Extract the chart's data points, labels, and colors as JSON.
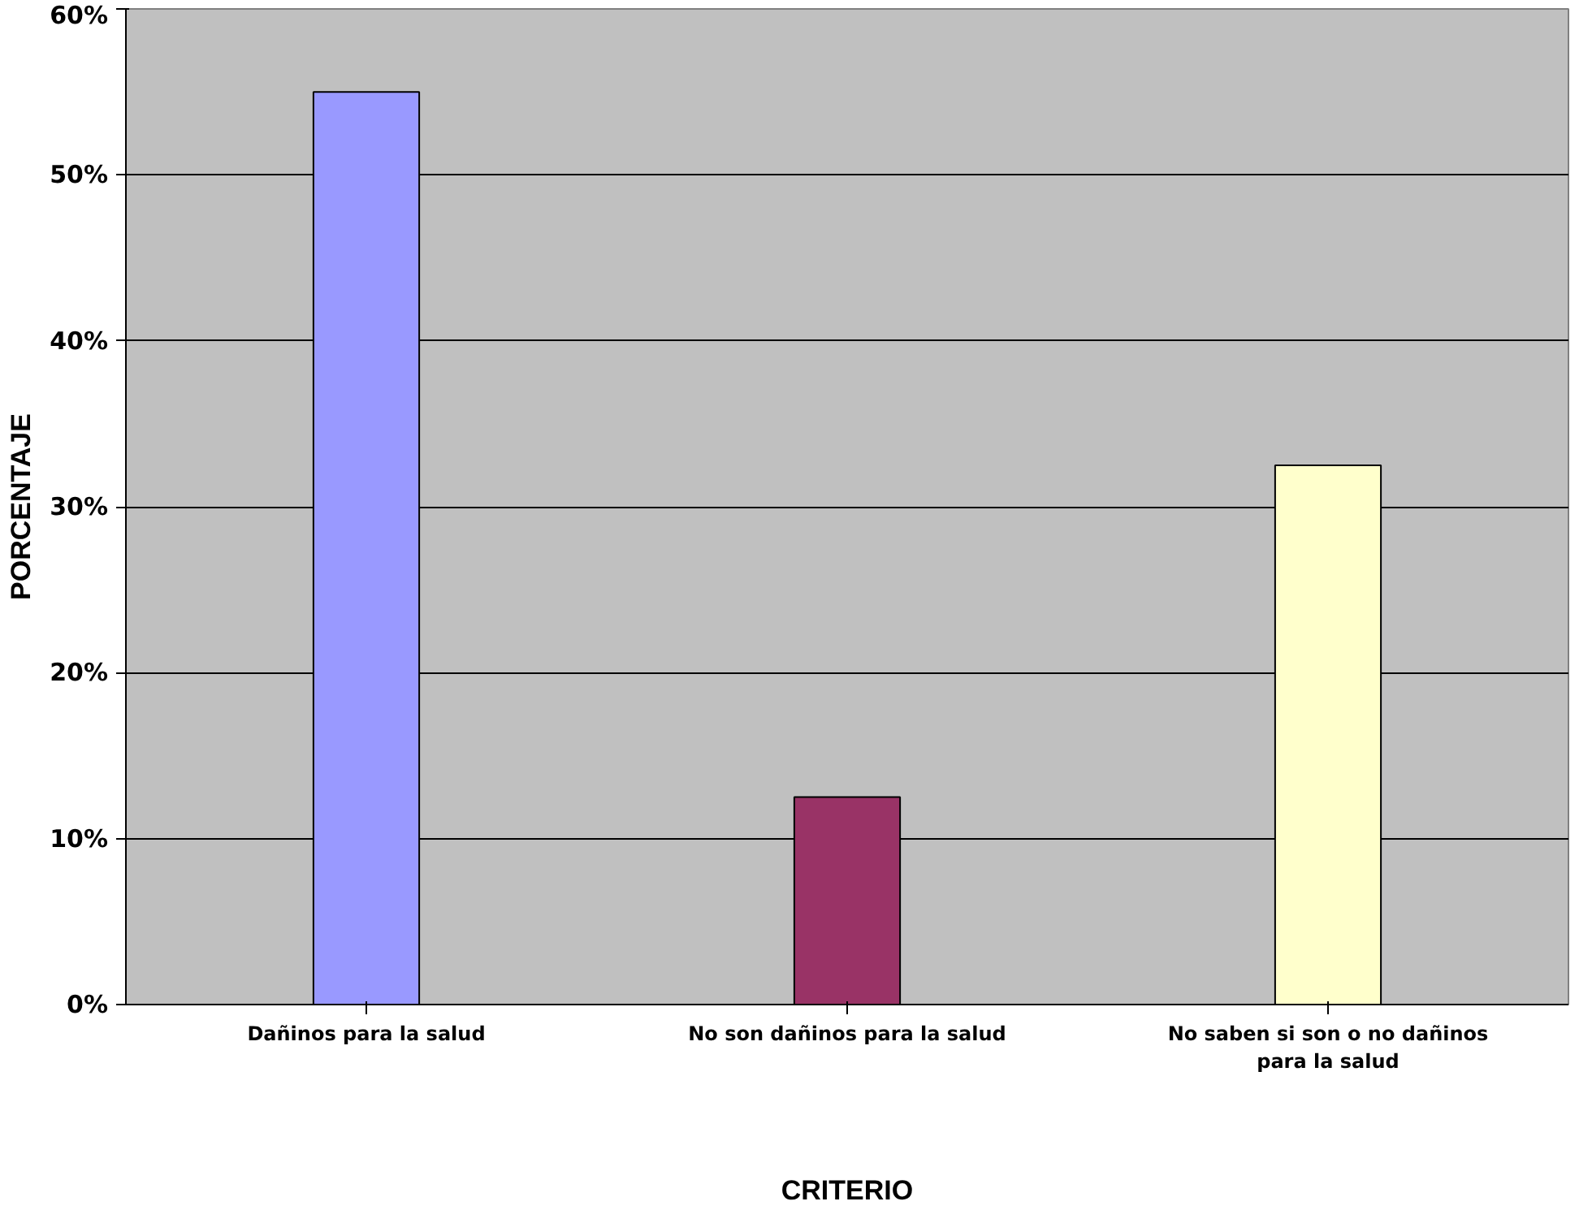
{
  "chart_data": {
    "type": "bar",
    "xlabel": "CRITERIO",
    "ylabel": "PORCENTAJE",
    "categories": [
      "Dañinos para la salud",
      "No son dañinos para la salud",
      "No saben si son o no dañinos para la salud"
    ],
    "values": [
      55,
      12.5,
      32.5
    ],
    "colors": [
      "#9999ff",
      "#993366",
      "#ffffcc"
    ],
    "ylim": [
      0,
      60
    ],
    "yticks": [
      {
        "value": 0,
        "label": "0%"
      },
      {
        "value": 10,
        "label": "10%"
      },
      {
        "value": 20,
        "label": "20%"
      },
      {
        "value": 30,
        "label": "30%"
      },
      {
        "value": 40,
        "label": "40%"
      },
      {
        "value": 50,
        "label": "50%"
      },
      {
        "value": 60,
        "label": "60%"
      }
    ],
    "grid": "y"
  }
}
